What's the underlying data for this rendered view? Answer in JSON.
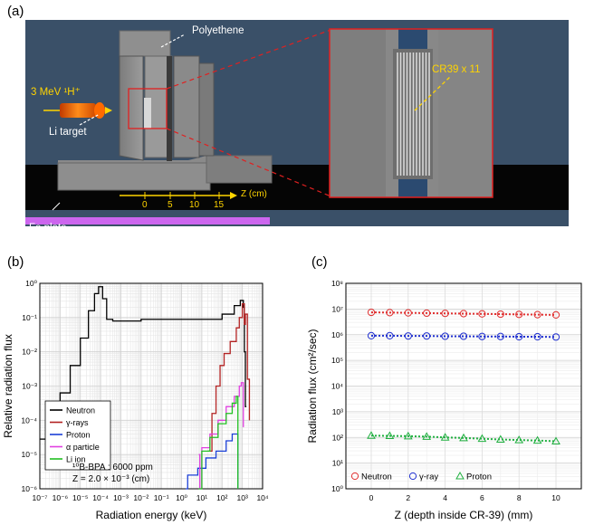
{
  "figure": {
    "panel_a": {
      "label": "(a)",
      "polyethene": "Polyethene",
      "beam": "3 MeV ¹H⁺",
      "li_target": "Li target",
      "fe_plate": "Fe plate",
      "z_axis_label": "Z (cm)",
      "z_ticks": [
        "0",
        "5",
        "10",
        "15"
      ],
      "inset_label": "CR39 x 11"
    },
    "panel_b": {
      "label": "(b)",
      "annotation_line1": "¹⁰B-BPA : 6000 ppm",
      "annotation_line2": "Z = 2.0 × 10⁻³ (cm)"
    },
    "panel_c": {
      "label": "(c)"
    },
    "colors": {
      "scene_bg": "#3a5068",
      "neutron": "#000000",
      "gamma": "#b22222",
      "proton": "#1a3fd6",
      "alpha": "#e040e0",
      "li_ion": "#22c022",
      "c_neutron": "#e03030",
      "c_gamma": "#2030d0",
      "c_proton": "#20b040",
      "fe_plate": "#cc66ee",
      "inset_border": "#e02020"
    }
  },
  "chart_data": [
    {
      "type": "line",
      "title": "",
      "xlabel": "Radiation energy (keV)",
      "ylabel": "Relative radiation flux",
      "xscale": "log",
      "yscale": "log",
      "xlim": [
        -7,
        4
      ],
      "ylim": [
        -6,
        0
      ],
      "x_tick_labels": [
        "10⁻⁷",
        "10⁻⁶",
        "10⁻⁵",
        "10⁻⁴",
        "10⁻³",
        "10⁻²",
        "10⁻¹",
        "10⁰",
        "10¹",
        "10²",
        "10³",
        "10⁴"
      ],
      "y_tick_labels": [
        "10⁻⁶",
        "10⁻⁵",
        "10⁻⁴",
        "10⁻³",
        "10⁻²",
        "10⁻¹",
        "10⁰"
      ],
      "legend_position": "bottom-left",
      "series": [
        {
          "name": "Neutron",
          "color": "#000000",
          "points": [
            [
              -7,
              -4.55
            ],
            [
              -6.5,
              -3.9
            ],
            [
              -6,
              -3.2
            ],
            [
              -5.5,
              -2.4
            ],
            [
              -5,
              -1.6
            ],
            [
              -4.6,
              -0.8
            ],
            [
              -4.3,
              -0.3
            ],
            [
              -4.1,
              -0.1
            ],
            [
              -3.9,
              -0.45
            ],
            [
              -3.7,
              -1.05
            ],
            [
              -3.4,
              -1.1
            ],
            [
              -2,
              -1.05
            ],
            [
              -1,
              -1.05
            ],
            [
              0,
              -1.05
            ],
            [
              1,
              -1.05
            ],
            [
              2,
              -0.9
            ],
            [
              2.6,
              -0.65
            ],
            [
              2.9,
              -0.5
            ],
            [
              3.05,
              -0.7
            ],
            [
              3.1,
              -2.0
            ],
            [
              3.15,
              -3.6
            ],
            [
              3.2,
              -3.6
            ]
          ]
        },
        {
          "name": "γ-rays",
          "color": "#b22222",
          "points": [
            [
              1.3,
              -4.9
            ],
            [
              1.5,
              -3.8
            ],
            [
              1.7,
              -3.0
            ],
            [
              1.9,
              -2.4
            ],
            [
              2.1,
              -2.05
            ],
            [
              2.4,
              -1.7
            ],
            [
              2.6,
              -1.7
            ],
            [
              2.7,
              -1.3
            ],
            [
              2.85,
              -1.0
            ],
            [
              3.0,
              -0.6
            ],
            [
              3.1,
              -1.2
            ],
            [
              3.15,
              -0.9
            ],
            [
              3.25,
              -2.8
            ],
            [
              3.35,
              -4.0
            ]
          ]
        },
        {
          "name": "Proton",
          "color": "#1a3fd6",
          "points": [
            [
              0.2,
              -6.0
            ],
            [
              0.3,
              -5.6
            ],
            [
              0.8,
              -5.4
            ],
            [
              1.2,
              -5.1
            ],
            [
              1.7,
              -4.9
            ],
            [
              2.2,
              -4.6
            ],
            [
              2.5,
              -4.4
            ],
            [
              2.7,
              -4.4
            ],
            [
              2.78,
              -6.0
            ]
          ]
        },
        {
          "name": "α particle",
          "color": "#e040e0",
          "points": [
            [
              0.85,
              -5.0
            ],
            [
              0.9,
              -6.0
            ],
            [
              1.0,
              -4.8
            ],
            [
              1.4,
              -4.4
            ],
            [
              1.8,
              -4.0
            ],
            [
              2.2,
              -3.6
            ],
            [
              2.6,
              -3.3
            ],
            [
              2.85,
              -3.0
            ],
            [
              2.95,
              -2.9
            ],
            [
              3.05,
              -4.2
            ]
          ]
        },
        {
          "name": "Li ion",
          "color": "#22c022",
          "points": [
            [
              0.85,
              -6.0
            ],
            [
              1.0,
              -4.9
            ],
            [
              1.4,
              -4.5
            ],
            [
              1.8,
              -4.1
            ],
            [
              2.2,
              -3.8
            ],
            [
              2.5,
              -3.5
            ],
            [
              2.7,
              -3.3
            ],
            [
              2.78,
              -6.0
            ]
          ]
        }
      ]
    },
    {
      "type": "scatter",
      "title": "",
      "xlabel": "Z (depth inside CR-39) (mm)",
      "ylabel": "Radiation flux (cm²/sec)",
      "yscale": "log",
      "xlim": [
        0,
        10
      ],
      "ylim": [
        0,
        8
      ],
      "x_tick_labels": [
        "0",
        "2",
        "4",
        "6",
        "8",
        "10"
      ],
      "y_tick_labels": [
        "10⁰",
        "10¹",
        "10²",
        "10³",
        "10⁴",
        "10⁵",
        "10⁶",
        "10⁷",
        "10⁸"
      ],
      "legend_position": "bottom",
      "x": [
        0,
        1,
        2,
        3,
        4,
        5,
        6,
        7,
        8,
        9,
        10
      ],
      "series": [
        {
          "name": "Neutron",
          "marker": "circle",
          "color": "#e03030",
          "log10_values": [
            6.87,
            6.86,
            6.85,
            6.84,
            6.83,
            6.82,
            6.81,
            6.8,
            6.79,
            6.78,
            6.77
          ]
        },
        {
          "name": "γ-ray",
          "marker": "circle",
          "color": "#2030d0",
          "log10_values": [
            5.96,
            5.96,
            5.95,
            5.95,
            5.94,
            5.94,
            5.93,
            5.93,
            5.92,
            5.92,
            5.91
          ]
        },
        {
          "name": "Proton",
          "marker": "triangle",
          "color": "#20b040",
          "log10_values": [
            2.07,
            2.06,
            2.05,
            2.03,
            2.0,
            1.98,
            1.95,
            1.92,
            1.9,
            1.88,
            1.85
          ]
        }
      ]
    }
  ]
}
